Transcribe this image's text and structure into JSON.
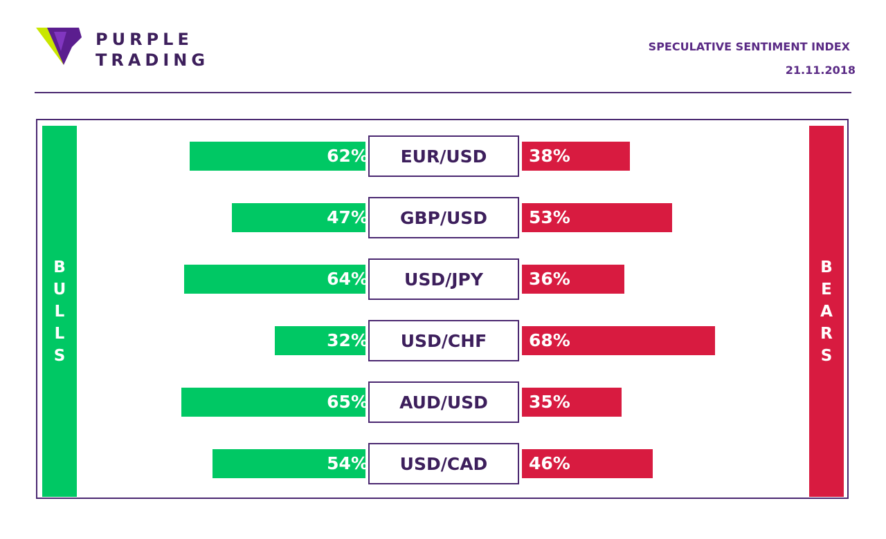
{
  "brand": {
    "name_line1": "PURPLE",
    "name_line2": "TRADING"
  },
  "header": {
    "title": "SPECULATIVE SENTIMENT INDEX",
    "date": "21.11.2018"
  },
  "labels": {
    "bulls": "BULLS",
    "bears": "BEARS"
  },
  "colors": {
    "bulls": "#00c864",
    "bears": "#d81b40",
    "brand": "#4a2770"
  },
  "chart_data": {
    "type": "bar",
    "categories": [
      "EUR/USD",
      "GBP/USD",
      "USD/JPY",
      "USD/CHF",
      "AUD/USD",
      "USD/CAD"
    ],
    "series": [
      {
        "name": "BULLS",
        "values": [
          62,
          47,
          64,
          32,
          65,
          54
        ]
      },
      {
        "name": "BEARS",
        "values": [
          38,
          53,
          36,
          68,
          35,
          46
        ]
      }
    ],
    "value_labels": {
      "bulls": [
        "62%",
        "47%",
        "64%",
        "32%",
        "65%",
        "54%"
      ],
      "bears": [
        "38%",
        "53%",
        "36%",
        "68%",
        "35%",
        "46%"
      ]
    },
    "unit": "%"
  }
}
